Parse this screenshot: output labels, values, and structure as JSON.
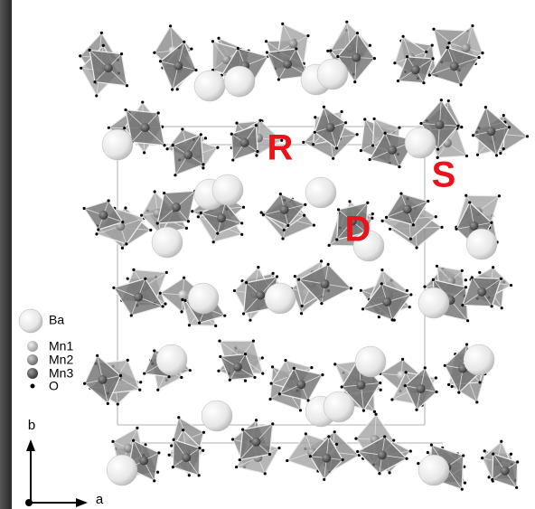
{
  "site_labels": [
    "R",
    "S",
    "D"
  ],
  "legend": {
    "items": [
      "Ba",
      "Mn1",
      "Mn2",
      "Mn3",
      "O"
    ]
  },
  "axes": {
    "vertical": "b",
    "horizontal": "a"
  }
}
